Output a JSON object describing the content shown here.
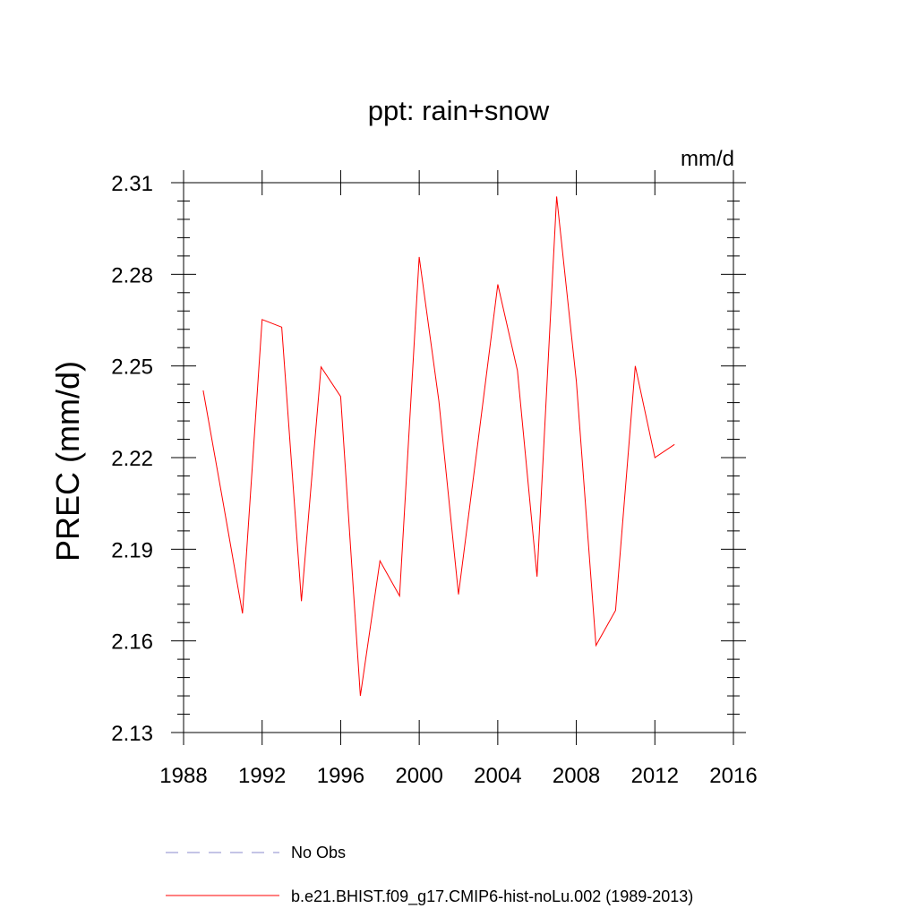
{
  "chart_data": {
    "type": "line",
    "title": "ppt: rain+snow",
    "units": "mm/d",
    "xlabel": "",
    "ylabel": "PREC  (mm/d)",
    "xlim": [
      1988,
      2016
    ],
    "ylim": [
      2.13,
      2.31
    ],
    "xticks": [
      1988,
      1992,
      1996,
      2000,
      2004,
      2008,
      2012,
      2016
    ],
    "yticks": [
      "2.13",
      "2.16",
      "2.19",
      "2.22",
      "2.25",
      "2.28",
      "2.31"
    ],
    "grid": false,
    "legend_position": "bottom",
    "series": [
      {
        "name": "No Obs",
        "color": "#8888cc",
        "style": "dashed",
        "x": [],
        "values": []
      },
      {
        "name": "b.e21.BHIST.f09_g17.CMIP6-hist-noLu.002 (1989-2013)",
        "color": "#ff0000",
        "style": "solid",
        "x": [
          1989,
          1990,
          1991,
          1992,
          1993,
          1994,
          1995,
          1996,
          1997,
          1998,
          1999,
          2000,
          2001,
          2002,
          2003,
          2004,
          2005,
          2006,
          2007,
          2008,
          2009,
          2010,
          2011,
          2012,
          2013
        ],
        "values": [
          2.242,
          2.2057,
          2.169,
          2.2652,
          2.2627,
          2.173,
          2.2497,
          2.24,
          2.142,
          2.1862,
          2.1747,
          2.2857,
          2.2385,
          2.1752,
          2.2255,
          2.2767,
          2.2485,
          2.181,
          2.3055,
          2.245,
          2.1585,
          2.17,
          2.25,
          2.22,
          2.2243
        ]
      }
    ]
  }
}
